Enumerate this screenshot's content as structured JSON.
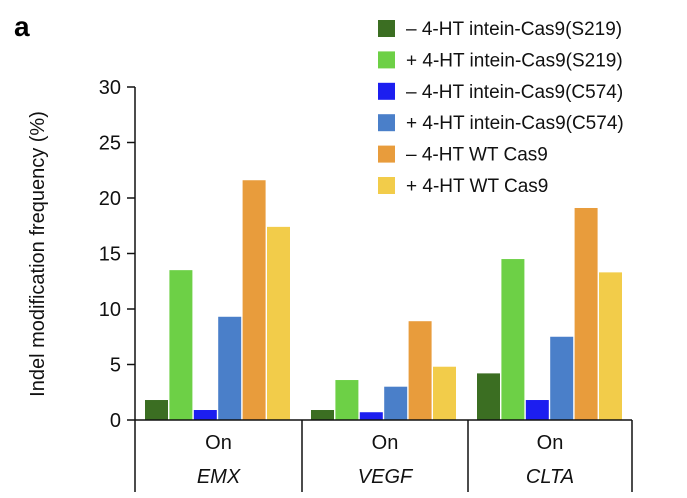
{
  "panel_label": "a",
  "chart_data": {
    "type": "bar",
    "ylabel": "Indel modification frequency (%)",
    "ylim": [
      0,
      30
    ],
    "yticks": [
      0,
      5,
      10,
      15,
      20,
      25,
      30
    ],
    "categories": [
      {
        "site": "On",
        "gene": "EMX"
      },
      {
        "site": "On",
        "gene": "VEGF"
      },
      {
        "site": "On",
        "gene": "CLTA"
      }
    ],
    "series": [
      {
        "name": "– 4-HT intein-Cas9(S219)",
        "color": "#3b6e22",
        "values": [
          1.8,
          0.9,
          4.2
        ]
      },
      {
        "name": "+ 4-HT intein-Cas9(S219)",
        "color": "#6dd046",
        "values": [
          13.5,
          3.6,
          14.5
        ]
      },
      {
        "name": "– 4-HT intein-Cas9(C574)",
        "color": "#1c1ef0",
        "values": [
          0.9,
          0.7,
          1.8
        ]
      },
      {
        "name": "+ 4-HT intein-Cas9(C574)",
        "color": "#4a7fc9",
        "values": [
          9.3,
          3.0,
          7.5
        ]
      },
      {
        "name": "– 4-HT WT Cas9",
        "color": "#e89c3c",
        "values": [
          21.6,
          8.9,
          19.1
        ]
      },
      {
        "name": "+ 4-HT WT Cas9",
        "color": "#f2cc4a",
        "values": [
          17.4,
          4.8,
          13.3
        ]
      }
    ],
    "legend_position": "top-right",
    "grid": false
  }
}
